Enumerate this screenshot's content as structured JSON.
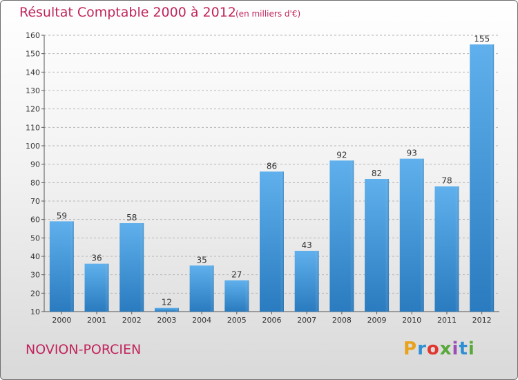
{
  "chart_data": {
    "type": "bar",
    "title": "Résultat Comptable 2000 à 2012",
    "subtitle": "(en milliers d'€)",
    "categories": [
      "2000",
      "2001",
      "2002",
      "2003",
      "2004",
      "2005",
      "2006",
      "2007",
      "2008",
      "2009",
      "2010",
      "2011",
      "2012"
    ],
    "values": [
      59,
      36,
      58,
      12,
      35,
      27,
      86,
      43,
      92,
      82,
      93,
      78,
      155
    ],
    "ylim": [
      10,
      160
    ],
    "yticks": [
      10,
      20,
      30,
      40,
      50,
      60,
      70,
      80,
      90,
      100,
      110,
      120,
      130,
      140,
      150,
      160
    ],
    "xlabel": "",
    "ylabel": "",
    "grid": true,
    "bar_color": "#4a9de0"
  },
  "footer": {
    "commune": "NOVION-PORCIEN",
    "brand": "Proxiti"
  }
}
